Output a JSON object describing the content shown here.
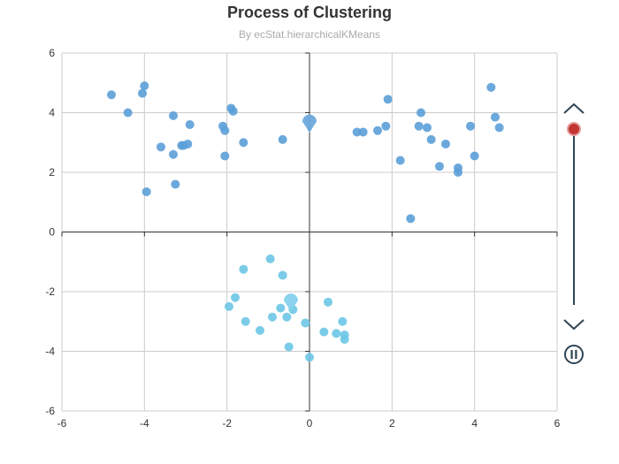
{
  "chart_data": {
    "type": "scatter",
    "title": "Process of Clustering",
    "subtitle": "By ecStat.hierarchicalKMeans",
    "xlim": [
      -6,
      6
    ],
    "ylim": [
      -6,
      6
    ],
    "x_ticks": [
      "-6",
      "-4",
      "-2",
      "0",
      "2",
      "4",
      "6"
    ],
    "y_ticks": [
      "-6",
      "-4",
      "-2",
      "0",
      "2",
      "4",
      "6"
    ],
    "grid": true,
    "colors": {
      "cluster_1": "#5b9fd8",
      "cluster_2": "#6cc6e6",
      "centroid_1": "#6aa9dc",
      "centroid_2": "#86d1ec",
      "grid": "#cccccc",
      "axis": "#333333",
      "timeline": "#2f4554",
      "timeline_handle": "#c23531"
    },
    "series": [
      {
        "cluster": 1,
        "points": [
          [
            -4.8,
            4.6
          ],
          [
            -4.4,
            4.0
          ],
          [
            -4.0,
            4.9
          ],
          [
            -4.05,
            4.65
          ],
          [
            -3.95,
            1.35
          ],
          [
            -3.6,
            2.85
          ],
          [
            -3.3,
            3.9
          ],
          [
            -3.3,
            2.6
          ],
          [
            -3.25,
            1.6
          ],
          [
            -3.1,
            2.9
          ],
          [
            -3.05,
            2.9
          ],
          [
            -2.95,
            2.95
          ],
          [
            -2.9,
            3.6
          ],
          [
            -2.1,
            3.55
          ],
          [
            -2.05,
            3.4
          ],
          [
            -2.05,
            2.55
          ],
          [
            -1.9,
            4.15
          ],
          [
            -1.85,
            4.05
          ],
          [
            -1.6,
            3.0
          ],
          [
            -0.65,
            3.1
          ],
          [
            1.15,
            3.35
          ],
          [
            1.3,
            3.35
          ],
          [
            1.65,
            3.4
          ],
          [
            1.85,
            3.55
          ],
          [
            1.9,
            4.45
          ],
          [
            2.2,
            2.4
          ],
          [
            2.45,
            0.45
          ],
          [
            2.65,
            3.55
          ],
          [
            2.7,
            4.0
          ],
          [
            2.85,
            3.5
          ],
          [
            2.95,
            3.1
          ],
          [
            3.15,
            2.2
          ],
          [
            3.3,
            2.95
          ],
          [
            3.6,
            2.0
          ],
          [
            3.6,
            2.15
          ],
          [
            3.9,
            3.55
          ],
          [
            4.0,
            2.55
          ],
          [
            4.4,
            4.85
          ],
          [
            4.5,
            3.85
          ],
          [
            4.6,
            3.5
          ]
        ]
      },
      {
        "cluster": 2,
        "points": [
          [
            -1.95,
            -2.5
          ],
          [
            -1.8,
            -2.2
          ],
          [
            -1.6,
            -1.25
          ],
          [
            -1.55,
            -3.0
          ],
          [
            -1.2,
            -3.3
          ],
          [
            -0.95,
            -0.9
          ],
          [
            -0.9,
            -2.85
          ],
          [
            -0.7,
            -2.55
          ],
          [
            -0.65,
            -1.45
          ],
          [
            -0.55,
            -2.85
          ],
          [
            -0.5,
            -3.85
          ],
          [
            -0.4,
            -2.6
          ],
          [
            -0.1,
            -3.05
          ],
          [
            0.0,
            -4.2
          ],
          [
            0.35,
            -3.35
          ],
          [
            0.45,
            -2.35
          ],
          [
            0.65,
            -3.4
          ],
          [
            0.8,
            -3.0
          ],
          [
            0.85,
            -3.45
          ],
          [
            0.85,
            -3.6
          ]
        ]
      }
    ],
    "centroids": [
      {
        "cluster": 1,
        "x": 0.0,
        "y": 3.7
      },
      {
        "cluster": 2,
        "x": -0.45,
        "y": -2.3
      }
    ],
    "timeline": {
      "progress": 0.0,
      "play_state": "playing"
    }
  },
  "icons": {
    "prev": "chevron-up-icon",
    "next": "chevron-down-icon",
    "pause": "pause-icon"
  }
}
